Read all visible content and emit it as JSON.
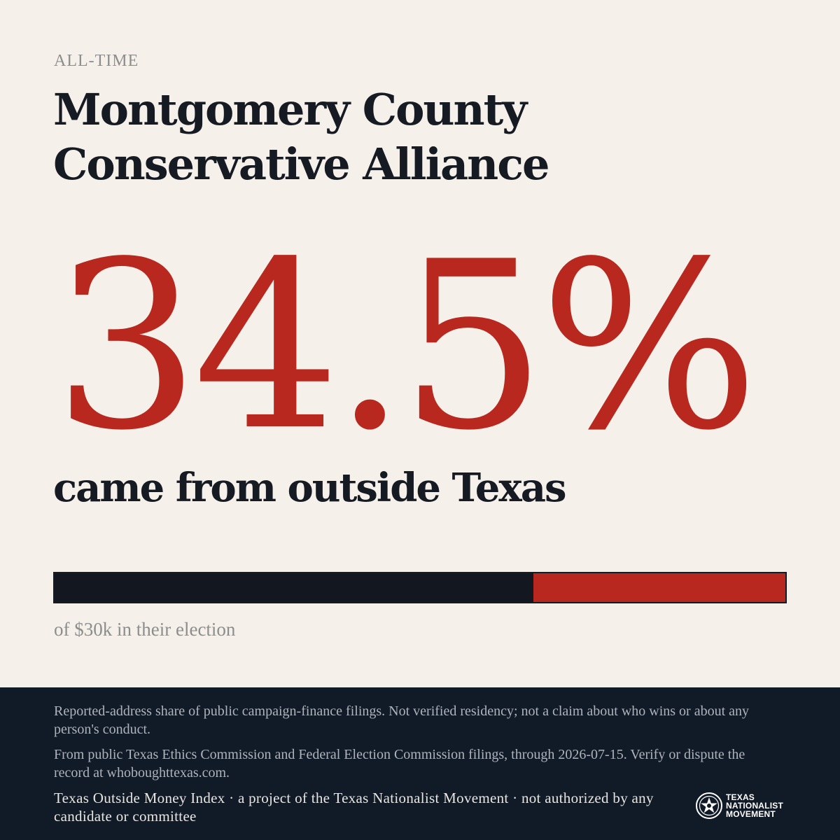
{
  "eyebrow": "ALL-TIME",
  "title": "Montgomery County Conservative Alliance",
  "stat": {
    "value": "34.5%",
    "share_outside": 0.345,
    "caption": "came from outside Texas"
  },
  "bar_caption": "of $30k in their election",
  "footer": {
    "disclaimer": "Reported-address share of public campaign-finance filings. Not verified residency; not a claim about who wins or about any person's conduct.",
    "source": "From public Texas Ethics Commission and Federal Election Commission filings, through 2026-07-15. Verify or dispute the record at whoboughttexas.com.",
    "credit": "Texas Outside Money Index · a project of the Texas Nationalist Movement · not authorized by any candidate or committee",
    "logo_lines": [
      "TEXAS",
      "NATIONALIST",
      "MOVEMENT"
    ]
  },
  "colors": {
    "background": "#f5f1ea",
    "accent_red": "#b8281f",
    "ink": "#161a22",
    "footer_bg": "#111a27"
  }
}
